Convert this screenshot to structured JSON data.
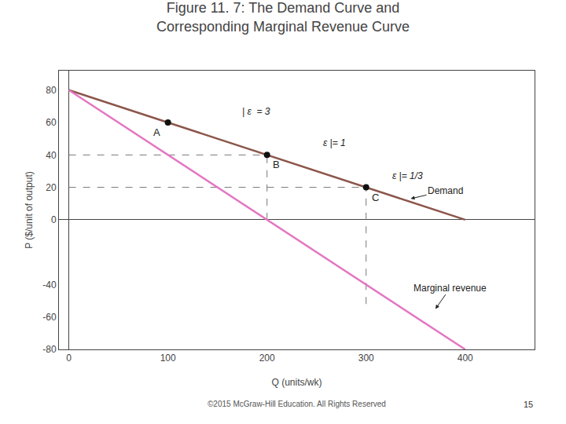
{
  "chart_data": {
    "type": "line",
    "title": "Figure 11. 7: The Demand Curve and",
    "subtitle": "Corresponding Marginal Revenue Curve",
    "xlabel": "Q (units/wk)",
    "ylabel": "P ($/unit of output)",
    "xlim": [
      -10,
      470
    ],
    "ylim": [
      -80,
      92
    ],
    "xticks": [
      0,
      100,
      200,
      300,
      400
    ],
    "yticks": [
      -80,
      -60,
      -40,
      0,
      20,
      40,
      60,
      80
    ],
    "grid": false,
    "series": [
      {
        "name": "Demand",
        "x": [
          0,
          400
        ],
        "values": [
          80,
          0
        ]
      },
      {
        "name": "Marginal revenue",
        "x": [
          0,
          400
        ],
        "values": [
          80,
          -80
        ]
      }
    ],
    "points": [
      {
        "x": 100,
        "y": 60,
        "label": "A"
      },
      {
        "x": 200,
        "y": 40,
        "label": "B"
      },
      {
        "x": 300,
        "y": 20,
        "label": "C"
      }
    ],
    "dashed_lines": [
      {
        "x": 200,
        "y": 40
      },
      {
        "x": 300,
        "y": 20
      }
    ],
    "extra_dashed": {
      "x": 300,
      "y": [
        -52,
        0
      ]
    },
    "annotations": [
      {
        "text": "| ε  = 3",
        "x": 173,
        "y": 67
      },
      {
        "text": "ε |= 1",
        "x": 255,
        "y": 47.5
      },
      {
        "text": "ε |= 1/3",
        "x": 325,
        "y": 27
      },
      {
        "text": "Demand",
        "x": 380,
        "y": 18,
        "arrow_x": 345,
        "arrow_y": 13
      },
      {
        "text": "Marginal revenue",
        "x": 385,
        "y": -42,
        "arrow_x": 370,
        "arrow_y": -55
      }
    ],
    "footnote": "©2015 McGraw-Hill Education. All Rights Reserved",
    "page_number": "15"
  }
}
